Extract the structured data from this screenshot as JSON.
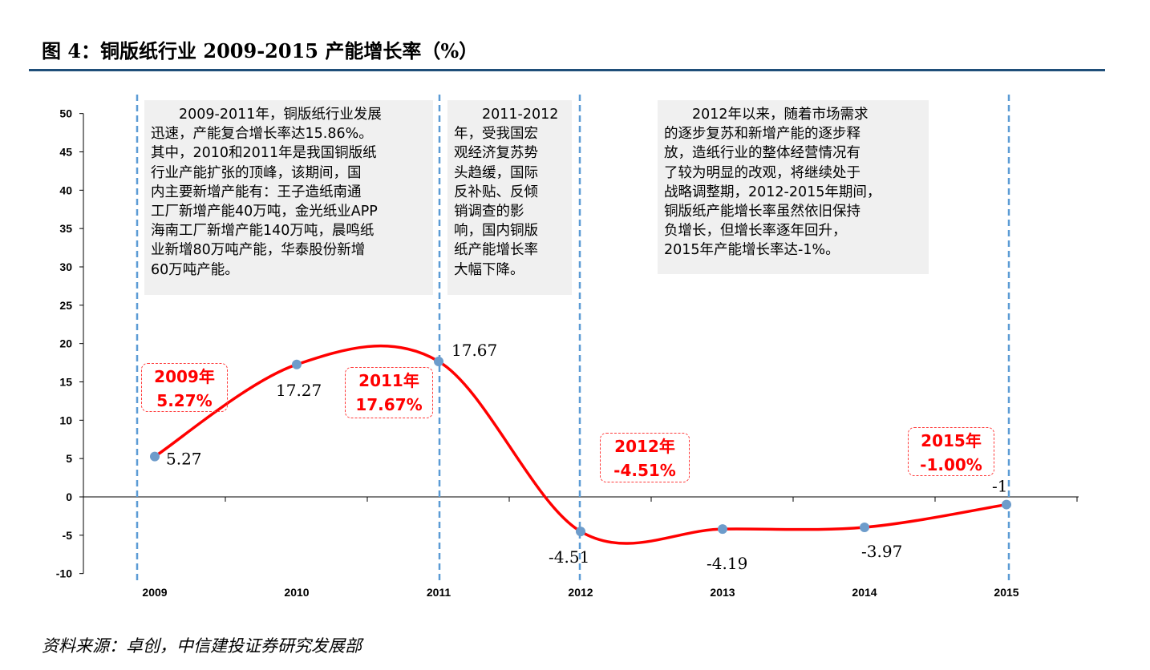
{
  "title": "图  4：铜版纸行业 2009-2015 产能增长率（%）",
  "source": "资料来源：卓创，中信建投证券研究发展部",
  "chart_data": {
    "type": "line",
    "categories": [
      "2009",
      "2010",
      "2011",
      "2012",
      "2013",
      "2014",
      "2015"
    ],
    "values": [
      5.27,
      17.27,
      17.67,
      -4.51,
      -4.19,
      -3.97,
      -1
    ],
    "data_labels": [
      "5.27",
      "17.27",
      "17.67",
      "-4.51",
      "-4.19",
      "-3.97",
      "-1"
    ],
    "ylim": [
      -10,
      50
    ],
    "yticks": [
      50,
      45,
      40,
      35,
      30,
      25,
      20,
      15,
      10,
      5,
      0,
      -5,
      -10
    ],
    "smooth": true,
    "line_color": "#ff0000",
    "marker_color": "#6d9ccb",
    "grid": false,
    "vertical_markers": [
      "2009",
      "2011",
      "2012",
      "2015"
    ],
    "annotations": [
      {
        "lines": [
          "　　2009-2011年，铜版纸行业发展",
          "迅速，产能复合增长率达15.86%。",
          "其中，2010和2011年是我国铜版纸",
          "行业产能扩张的顶峰，该期间，国",
          "内主要新增产能有：王子造纸南通",
          "工厂新增产能40万吨，金光纸业APP",
          "海南工厂新增产能140万吨，晨鸣纸",
          "业新增80万吨产能，华泰股份新增",
          "60万吨产能。"
        ]
      },
      {
        "lines": [
          "　　2011-2012",
          "年，受我国宏",
          "观经济复苏势",
          "头趋缓，国际",
          "反补贴、反倾",
          "销调查的影",
          "响，国内铜版",
          "纸产能增长率",
          "大幅下降。"
        ]
      },
      {
        "lines": [
          "　　2012年以来，随着市场需求",
          "的逐步复苏和新增产能的逐步释",
          "放，造纸行业的整体经营情况有",
          "了较为明显的改观，将继续处于",
          "战略调整期，2012-2015年期间，",
          "铜版纸产能增长率虽然依旧保持",
          "负增长，但增长率逐年回升，",
          "2015年产能增长率达-1%。"
        ]
      }
    ],
    "callouts": [
      {
        "year": "2009年",
        "value": "5.27%"
      },
      {
        "year": "2011年",
        "value": "17.67%"
      },
      {
        "year": "2012年",
        "value": "-4.51%"
      },
      {
        "year": "2015年",
        "value": "-1.00%"
      }
    ]
  }
}
